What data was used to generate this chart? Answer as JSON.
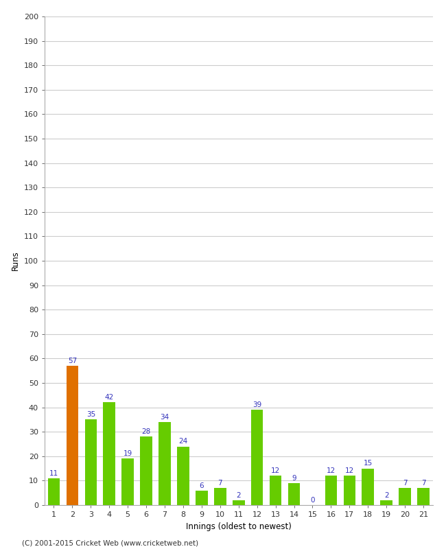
{
  "innings": [
    1,
    2,
    3,
    4,
    5,
    6,
    7,
    8,
    9,
    10,
    11,
    12,
    13,
    14,
    15,
    16,
    17,
    18,
    19,
    20,
    21
  ],
  "values": [
    11,
    57,
    35,
    42,
    19,
    28,
    34,
    24,
    6,
    7,
    2,
    39,
    12,
    9,
    0,
    12,
    12,
    15,
    2,
    7,
    7
  ],
  "bar_colors": [
    "#66cc00",
    "#e07000",
    "#66cc00",
    "#66cc00",
    "#66cc00",
    "#66cc00",
    "#66cc00",
    "#66cc00",
    "#66cc00",
    "#66cc00",
    "#66cc00",
    "#66cc00",
    "#66cc00",
    "#66cc00",
    "#66cc00",
    "#66cc00",
    "#66cc00",
    "#66cc00",
    "#66cc00",
    "#66cc00",
    "#66cc00"
  ],
  "xlabel": "Innings (oldest to newest)",
  "ylabel": "Runs",
  "ylim": [
    0,
    200
  ],
  "ytick_step": 10,
  "label_color": "#3333bb",
  "label_fontsize": 7.5,
  "axis_tick_fontsize": 8,
  "axis_label_fontsize": 8.5,
  "grid_color": "#cccccc",
  "background_color": "#ffffff",
  "footer": "(C) 2001-2015 Cricket Web (www.cricketweb.net)",
  "footer_fontsize": 7.5,
  "bar_width": 0.65
}
